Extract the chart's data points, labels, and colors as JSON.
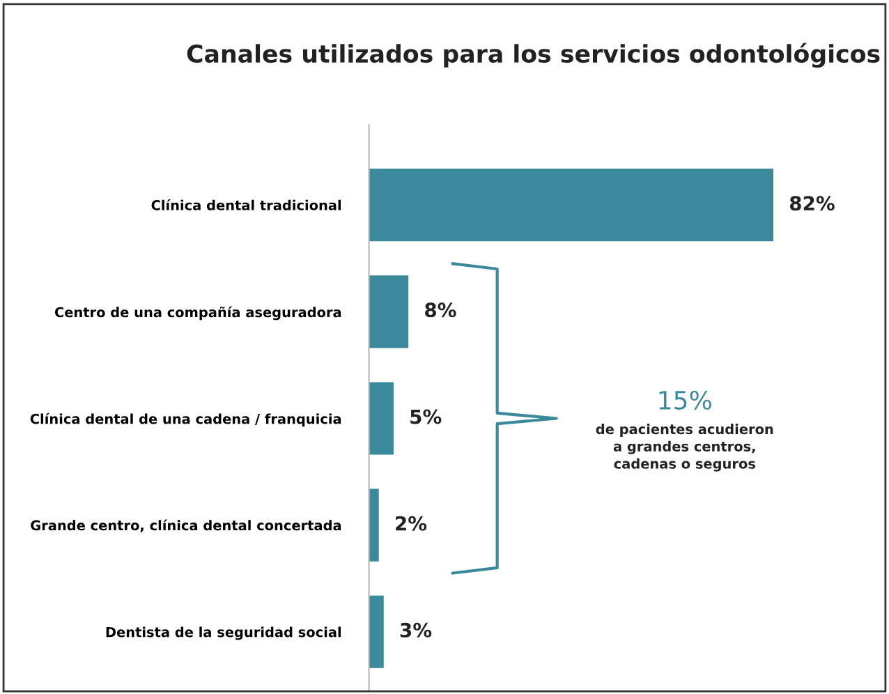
{
  "chart_data": {
    "type": "bar",
    "orientation": "horizontal",
    "title": "Canales utilizados para los servicios odontológicos",
    "categories": [
      "Clínica dental tradicional",
      "Centro de una compañía aseguradora",
      "Clínica dental de una cadena / franquicia",
      "Grande centro, clínica dental concertada",
      "Dentista de la seguridad social"
    ],
    "values": [
      82,
      8,
      5,
      2,
      3
    ],
    "value_labels": [
      "82%",
      "8%",
      "5%",
      "2%",
      "3%"
    ],
    "color": "#3b8a9c",
    "annotations": [
      "15%",
      "de pacientes acudieron\na grandes centros,\ncadenas o seguros"
    ],
    "grid": false,
    "legend": false
  }
}
